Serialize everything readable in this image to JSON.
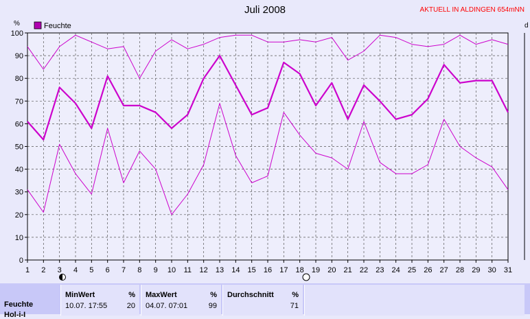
{
  "header": {
    "station": "AKTUELL IN ALDINGEN 654mNN"
  },
  "chart_data": {
    "type": "line",
    "title": "Juli 2008",
    "ylabel": "%",
    "right_label": "d",
    "legend": [
      "Feuchte"
    ],
    "ylim": [
      0,
      100
    ],
    "yticks": [
      0,
      10,
      20,
      30,
      40,
      50,
      60,
      70,
      80,
      90,
      100
    ],
    "x": [
      1,
      2,
      3,
      4,
      5,
      6,
      7,
      8,
      9,
      10,
      11,
      12,
      13,
      14,
      15,
      16,
      17,
      18,
      19,
      20,
      21,
      22,
      23,
      24,
      25,
      26,
      27,
      28,
      29,
      30,
      31
    ],
    "grid": true,
    "color": "#cc00cc",
    "series": [
      {
        "values": [
          94,
          84,
          94,
          99,
          96,
          93,
          94,
          80,
          92,
          97,
          93,
          95,
          98,
          99,
          99,
          96,
          96,
          97,
          96,
          98,
          88,
          92,
          99,
          98,
          95,
          94,
          95,
          99,
          95,
          97,
          95
        ]
      },
      {
        "values": [
          61,
          53,
          76,
          69,
          58,
          81,
          68,
          68,
          65,
          58,
          64,
          80,
          90,
          77,
          64,
          67,
          87,
          82,
          68,
          78,
          62,
          77,
          70,
          62,
          64,
          71,
          86,
          78,
          79,
          79,
          65
        ]
      },
      {
        "values": [
          31,
          21,
          51,
          38,
          29,
          58,
          34,
          48,
          40,
          20,
          29,
          42,
          69,
          46,
          34,
          37,
          65,
          55,
          47,
          45,
          40,
          61,
          43,
          38,
          38,
          42,
          62,
          50,
          45,
          41,
          31
        ]
      }
    ]
  },
  "stats": {
    "row_label": "Feuchte",
    "row_label_2": "Hol-i-I",
    "unit": "%",
    "min_header": "MinWert",
    "min_time": "10.07.  17:55",
    "min_value": "20",
    "max_header": "MaxWert",
    "max_time": "04.07.  07:01",
    "max_value": "99",
    "avg_header": "Durchschnitt",
    "avg_value": "71"
  }
}
